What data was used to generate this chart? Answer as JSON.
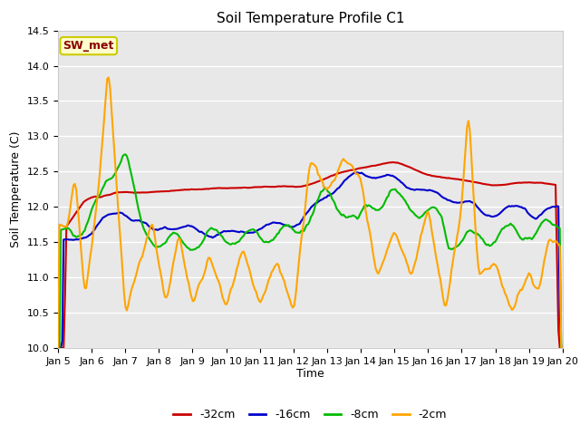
{
  "title": "Soil Temperature Profile C1",
  "xlabel": "Time",
  "ylabel": "Soil Temperature (C)",
  "ylim": [
    10.0,
    14.5
  ],
  "yticks": [
    10.0,
    10.5,
    11.0,
    11.5,
    12.0,
    12.5,
    13.0,
    13.5,
    14.0,
    14.5
  ],
  "x_labels": [
    "Jan 5",
    "Jan 6",
    "Jan 7",
    "Jan 8",
    "Jan 9",
    "Jan 10",
    "Jan 11",
    "Jan 12",
    "Jan 13",
    "Jan 14",
    "Jan 15",
    "Jan 16",
    "Jan 17",
    "Jan 18",
    "Jan 19",
    "Jan 20"
  ],
  "annotation_text": "SW_met",
  "annotation_color": "#8B0000",
  "annotation_bg": "#FFFFCC",
  "annotation_edge": "#CCCC00",
  "background_color": "#E8E8E8",
  "grid_color": "#FFFFFF",
  "series": {
    "-32cm": {
      "color": "#CC0000",
      "linewidth": 1.5
    },
    "-16cm": {
      "color": "#0000CC",
      "linewidth": 1.5
    },
    "-8cm": {
      "color": "#00BB00",
      "linewidth": 1.5
    },
    "-2cm": {
      "color": "#FFA500",
      "linewidth": 1.5
    }
  },
  "legend_labels": [
    "-32cm",
    "-16cm",
    "-8cm",
    "-2cm"
  ]
}
